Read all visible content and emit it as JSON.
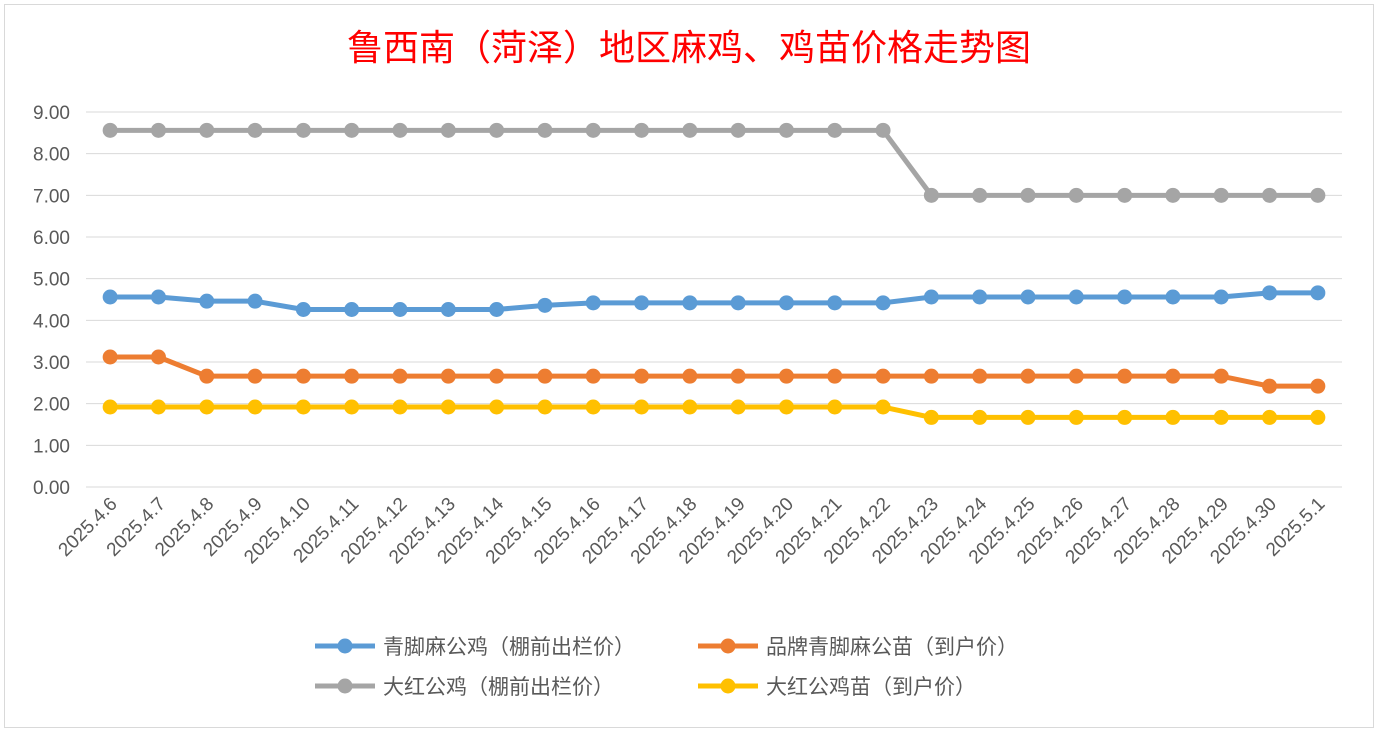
{
  "chart_data": {
    "type": "line",
    "title": "鲁西南（菏泽）地区麻鸡、鸡苗价格走势图",
    "xlabel": "",
    "ylabel": "",
    "ylim": [
      0,
      9
    ],
    "yticks": [
      "0.00",
      "1.00",
      "2.00",
      "3.00",
      "4.00",
      "5.00",
      "6.00",
      "7.00",
      "8.00",
      "9.00"
    ],
    "grid": true,
    "legend_position": "bottom",
    "categories": [
      "2025.4.6",
      "2025.4.7",
      "2025.4.8",
      "2025.4.9",
      "2025.4.10",
      "2025.4.11",
      "2025.4.12",
      "2025.4.13",
      "2025.4.14",
      "2025.4.15",
      "2025.4.16",
      "2025.4.17",
      "2025.4.18",
      "2025.4.19",
      "2025.4.20",
      "2025.4.21",
      "2025.4.22",
      "2025.4.23",
      "2025.4.24",
      "2025.4.25",
      "2025.4.26",
      "2025.4.27",
      "2025.4.28",
      "2025.4.29",
      "2025.4.30",
      "2025.5.1"
    ],
    "series": [
      {
        "name": "青脚麻公鸡（棚前出栏价）",
        "color": "#5b9bd5",
        "values": [
          4.56,
          4.56,
          4.46,
          4.46,
          4.26,
          4.26,
          4.26,
          4.26,
          4.26,
          4.36,
          4.42,
          4.42,
          4.42,
          4.42,
          4.42,
          4.42,
          4.42,
          4.56,
          4.56,
          4.56,
          4.56,
          4.56,
          4.56,
          4.56,
          4.66,
          4.66
        ]
      },
      {
        "name": "品牌青脚麻公苗（到户价）",
        "color": "#ed7d31",
        "values": [
          3.12,
          3.12,
          2.66,
          2.66,
          2.66,
          2.66,
          2.66,
          2.66,
          2.66,
          2.66,
          2.66,
          2.66,
          2.66,
          2.66,
          2.66,
          2.66,
          2.66,
          2.66,
          2.66,
          2.66,
          2.66,
          2.66,
          2.66,
          2.66,
          2.42,
          2.42
        ]
      },
      {
        "name": "大红公鸡（棚前出栏价）",
        "color": "#a5a5a5",
        "values": [
          8.56,
          8.56,
          8.56,
          8.56,
          8.56,
          8.56,
          8.56,
          8.56,
          8.56,
          8.56,
          8.56,
          8.56,
          8.56,
          8.56,
          8.56,
          8.56,
          8.56,
          7.0,
          7.0,
          7.0,
          7.0,
          7.0,
          7.0,
          7.0,
          7.0,
          7.0
        ]
      },
      {
        "name": "大红公鸡苗（到户价）",
        "color": "#ffc000",
        "values": [
          1.92,
          1.92,
          1.92,
          1.92,
          1.92,
          1.92,
          1.92,
          1.92,
          1.92,
          1.92,
          1.92,
          1.92,
          1.92,
          1.92,
          1.92,
          1.92,
          1.92,
          1.67,
          1.67,
          1.67,
          1.67,
          1.67,
          1.67,
          1.67,
          1.67,
          1.67
        ]
      }
    ],
    "title_color": "#ff0000"
  }
}
